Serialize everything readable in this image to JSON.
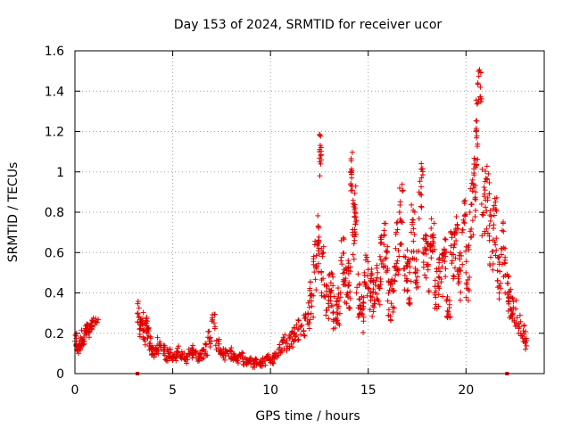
{
  "chart_data": {
    "type": "scatter",
    "title": "Day 153 of 2024, SRMTID for receiver ucor",
    "xlabel": "GPS time / hours",
    "ylabel": "SRMTID / TECUs",
    "xlim": [
      0,
      24
    ],
    "ylim": [
      0,
      1.6
    ],
    "x_ticks": [
      0,
      5,
      10,
      15,
      20
    ],
    "y_ticks": [
      0,
      0.2,
      0.4,
      0.6,
      0.8,
      1,
      1.2,
      1.4,
      1.6
    ],
    "x_tick_labels": [
      "0",
      "5",
      "10",
      "15",
      "20"
    ],
    "y_tick_labels": [
      "0",
      "0.2",
      "0.4",
      "0.6",
      "0.8",
      "1",
      "1.2",
      "1.4",
      "1.6"
    ],
    "grid": true,
    "marker": "plus",
    "color": "#e00000",
    "series": [
      {
        "name": "SRMTID",
        "x": [
          0.0,
          0.1,
          0.2,
          0.3,
          0.4,
          0.5,
          0.6,
          0.7,
          0.8,
          0.9,
          3.2,
          3.3,
          3.4,
          3.5,
          3.6,
          3.7,
          3.8,
          3.9,
          4.0,
          4.2,
          4.4,
          4.6,
          4.8,
          5.0,
          5.2,
          5.4,
          5.6,
          5.8,
          6.0,
          6.2,
          6.4,
          6.6,
          6.8,
          7.0,
          7.2,
          7.4,
          7.6,
          7.8,
          8.0,
          8.2,
          8.4,
          8.6,
          8.8,
          9.0,
          9.2,
          9.4,
          9.6,
          9.8,
          10.0,
          10.2,
          10.4,
          10.6,
          10.8,
          11.0,
          11.2,
          11.4,
          11.6,
          11.8,
          12.0,
          12.2,
          12.4,
          12.5,
          12.6,
          12.8,
          13.0,
          13.2,
          13.4,
          13.6,
          13.8,
          14.0,
          14.1,
          14.2,
          14.3,
          14.4,
          14.6,
          14.8,
          15.0,
          15.2,
          15.4,
          15.6,
          15.8,
          16.0,
          16.2,
          16.4,
          16.6,
          16.8,
          17.0,
          17.2,
          17.4,
          17.6,
          17.8,
          18.0,
          18.2,
          18.4,
          18.6,
          18.8,
          19.0,
          19.2,
          19.4,
          19.6,
          19.8,
          20.0,
          20.2,
          20.4,
          20.5,
          20.6,
          20.8,
          21.0,
          21.2,
          21.4,
          21.6,
          21.8,
          22.0,
          22.2,
          22.4,
          22.6,
          22.8,
          23.0
        ],
        "y": [
          0.16,
          0.12,
          0.14,
          0.18,
          0.16,
          0.2,
          0.22,
          0.21,
          0.24,
          0.26,
          0.3,
          0.22,
          0.26,
          0.18,
          0.24,
          0.2,
          0.15,
          0.12,
          0.1,
          0.14,
          0.12,
          0.09,
          0.1,
          0.08,
          0.11,
          0.09,
          0.07,
          0.1,
          0.12,
          0.08,
          0.1,
          0.12,
          0.18,
          0.26,
          0.14,
          0.11,
          0.09,
          0.1,
          0.08,
          0.07,
          0.09,
          0.06,
          0.07,
          0.05,
          0.06,
          0.05,
          0.06,
          0.08,
          0.07,
          0.09,
          0.12,
          0.16,
          0.15,
          0.18,
          0.2,
          0.22,
          0.24,
          0.28,
          0.36,
          0.54,
          0.64,
          1.1,
          0.5,
          0.38,
          0.42,
          0.3,
          0.34,
          0.56,
          0.46,
          0.44,
          1.0,
          0.7,
          0.8,
          0.4,
          0.3,
          0.5,
          0.42,
          0.38,
          0.46,
          0.58,
          0.64,
          0.36,
          0.42,
          0.62,
          0.8,
          0.52,
          0.46,
          0.7,
          0.5,
          0.9,
          0.6,
          0.54,
          0.68,
          0.4,
          0.48,
          0.56,
          0.36,
          0.6,
          0.64,
          0.48,
          0.7,
          0.5,
          0.8,
          0.92,
          1.2,
          1.44,
          0.84,
          0.86,
          0.66,
          0.72,
          0.46,
          0.62,
          0.4,
          0.36,
          0.3,
          0.24,
          0.2,
          0.16
        ],
        "spread": [
          0.04,
          0.03,
          0.03,
          0.04,
          0.03,
          0.04,
          0.03,
          0.03,
          0.03,
          0.02,
          0.06,
          0.05,
          0.05,
          0.04,
          0.04,
          0.03,
          0.04,
          0.03,
          0.03,
          0.04,
          0.03,
          0.03,
          0.03,
          0.02,
          0.03,
          0.02,
          0.02,
          0.03,
          0.03,
          0.02,
          0.03,
          0.03,
          0.05,
          0.05,
          0.03,
          0.03,
          0.03,
          0.03,
          0.02,
          0.02,
          0.02,
          0.02,
          0.02,
          0.02,
          0.02,
          0.02,
          0.02,
          0.02,
          0.02,
          0.02,
          0.03,
          0.04,
          0.04,
          0.05,
          0.05,
          0.06,
          0.06,
          0.08,
          0.1,
          0.14,
          0.16,
          0.12,
          0.14,
          0.12,
          0.1,
          0.09,
          0.1,
          0.12,
          0.12,
          0.12,
          0.1,
          0.16,
          0.14,
          0.12,
          0.1,
          0.12,
          0.12,
          0.1,
          0.12,
          0.14,
          0.14,
          0.1,
          0.12,
          0.14,
          0.16,
          0.14,
          0.12,
          0.14,
          0.12,
          0.16,
          0.14,
          0.14,
          0.14,
          0.12,
          0.12,
          0.14,
          0.1,
          0.14,
          0.14,
          0.12,
          0.16,
          0.14,
          0.16,
          0.16,
          0.18,
          0.1,
          0.18,
          0.18,
          0.16,
          0.16,
          0.12,
          0.14,
          0.12,
          0.1,
          0.08,
          0.06,
          0.05,
          0.05
        ]
      }
    ],
    "zero_markers_x": [
      3.2,
      22.1
    ]
  }
}
